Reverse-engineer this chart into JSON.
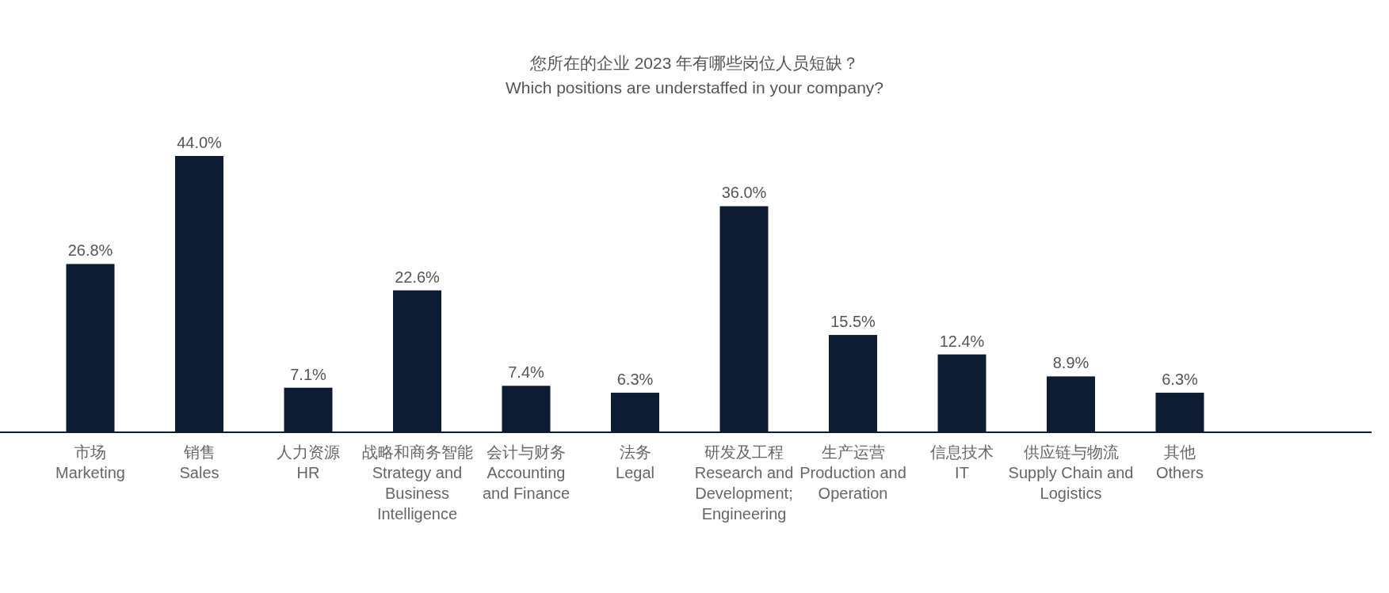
{
  "chart_data": {
    "type": "bar",
    "title": "您所在的企业 2023 年有哪些岗位人员短缺？",
    "subtitle": "Which positions are understaffed in your company?",
    "categories": [
      "市场\nMarketing",
      "销售\nSales",
      "人力资源\nHR",
      "战略和商务智能\nStrategy and\nBusiness\nIntelligence",
      "会计与财务\nAccounting\nand Finance",
      "法务\nLegal",
      "研发及工程\nResearch and\nDevelopment;\nEngineering",
      "生产运营\nProduction and\nOperation",
      "信息技术\nIT",
      "供应链与物流\nSupply Chain and\nLogistics",
      "其他\nOthers"
    ],
    "values": [
      26.8,
      44.0,
      7.1,
      22.6,
      7.4,
      6.3,
      36.0,
      15.5,
      12.4,
      8.9,
      6.3
    ],
    "value_labels": [
      "26.8%",
      "44.0%",
      "7.1%",
      "22.6%",
      "7.4%",
      "6.3%",
      "36.0%",
      "15.5%",
      "12.4%",
      "8.9%",
      "6.3%"
    ],
    "color": "#0d1b33"
  }
}
